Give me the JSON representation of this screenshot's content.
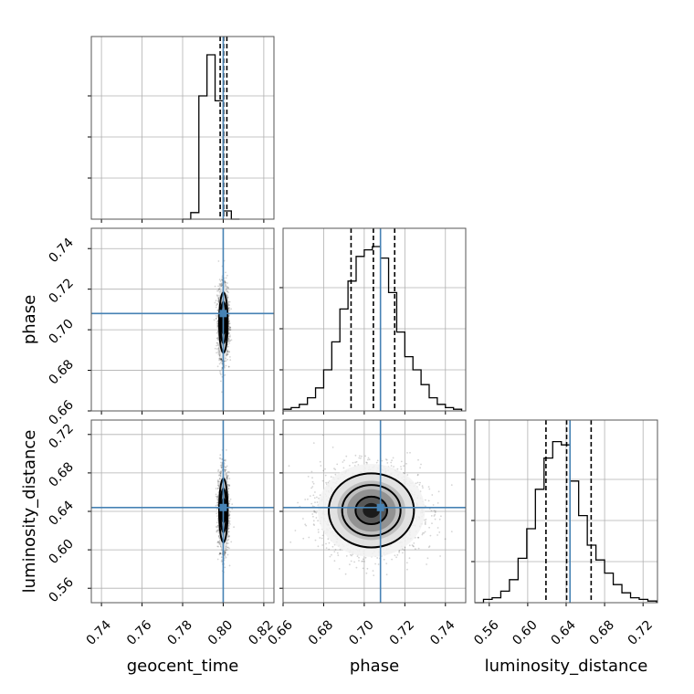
{
  "chart_data": {
    "type": "corner",
    "parameters": [
      {
        "name": "geocent_time",
        "truth": 0.8,
        "range": [
          0.735,
          0.825
        ],
        "ticks": [
          "0.74",
          "0.76",
          "0.78",
          "0.80",
          "0.82"
        ],
        "quantiles": [
          0.7985,
          0.8002,
          0.8018
        ]
      },
      {
        "name": "phase",
        "truth": 0.708,
        "range": [
          0.66,
          0.75
        ],
        "ticks": [
          "0.66",
          "0.68",
          "0.70",
          "0.72",
          "0.74"
        ],
        "quantiles": [
          0.6935,
          0.7045,
          0.715
        ]
      },
      {
        "name": "luminosity_distance",
        "truth": 0.644,
        "range": [
          0.545,
          0.735
        ],
        "ticks": [
          "0.56",
          "0.60",
          "0.64",
          "0.68",
          "0.72"
        ],
        "quantiles": [
          0.619,
          0.6405,
          0.666
        ]
      }
    ],
    "histograms": [
      {
        "bins_low": 0.78,
        "bin_width": 0.004,
        "values": [
          0.0,
          0.04,
          0.75,
          1.0,
          0.72,
          0.05,
          0.0
        ]
      },
      {
        "bins_low": 0.66,
        "bin_width": 0.004,
        "values": [
          0.01,
          0.02,
          0.04,
          0.08,
          0.14,
          0.25,
          0.42,
          0.62,
          0.79,
          0.94,
          0.98,
          1.0,
          0.93,
          0.72,
          0.48,
          0.33,
          0.25,
          0.16,
          0.08,
          0.04,
          0.02,
          0.01
        ]
      },
      {
        "bins_low": 0.545,
        "bin_width": 0.009,
        "values": [
          0.0,
          0.02,
          0.03,
          0.07,
          0.14,
          0.27,
          0.45,
          0.69,
          0.88,
          0.98,
          0.96,
          0.74,
          0.53,
          0.35,
          0.26,
          0.18,
          0.11,
          0.06,
          0.03,
          0.02,
          0.01
        ]
      }
    ],
    "scatter_pairs": [
      {
        "x": "geocent_time",
        "y": "phase",
        "x_sd": 0.0012,
        "y_sd": 0.0085,
        "x_mean": 0.8001,
        "y_mean": 0.7035
      },
      {
        "x": "geocent_time",
        "y": "luminosity_distance",
        "x_sd": 0.0012,
        "y_sd": 0.019,
        "x_mean": 0.8001,
        "y_mean": 0.641
      },
      {
        "x": "phase",
        "y": "luminosity_distance",
        "x_sd": 0.012,
        "y_sd": 0.022,
        "x_mean": 0.7035,
        "y_mean": 0.641
      }
    ],
    "truth_color": "#4682b4",
    "contour_color": "#000000",
    "grid": true
  }
}
